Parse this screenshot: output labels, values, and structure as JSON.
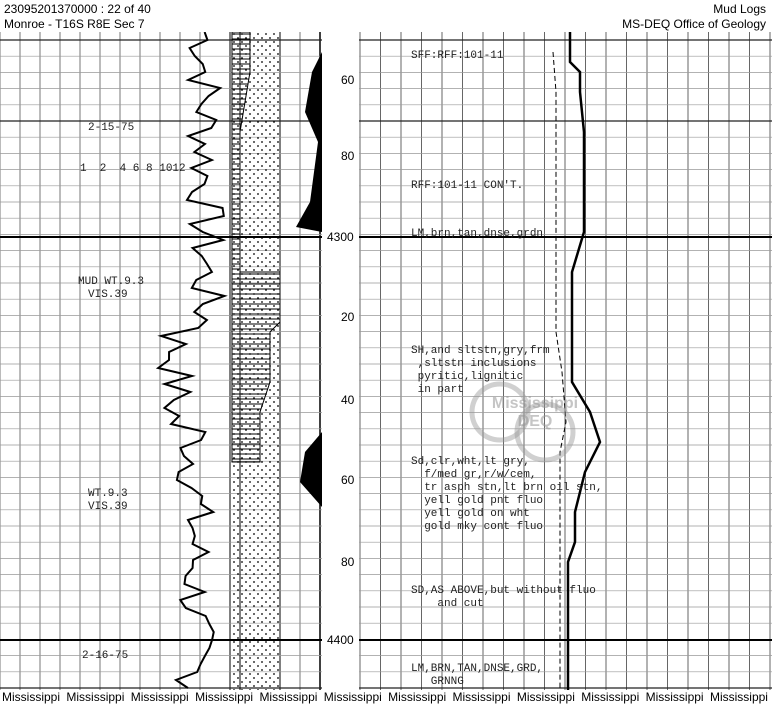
{
  "header": {
    "doc_id": "23095201370000 : 22 of 40",
    "location": "Monroe - T16S R8E Sec 7",
    "category": "Mud Logs",
    "agency": "MS-DEQ Office of Geology"
  },
  "left_notes": {
    "date1": "2-15-75",
    "scale": "1  2  4 6 8 1012",
    "mud1": "MUD WT.9.3",
    "vis1": "VIS.39",
    "mud2": "WT.9.3",
    "vis2": "VIS.39",
    "date2": "2-16-75"
  },
  "depths": [
    "60",
    "80",
    "4300",
    "20",
    "40",
    "60",
    "80",
    "4400"
  ],
  "descriptions": {
    "d1": "SFF:RFF:101-11",
    "d2": "RFF:101-11 CON'T.",
    "d3": "LM,brn,tan,dnse,grdn",
    "d4": "SH,and sltstn,gry,frm\n ,sltstn inclusions\n pyritic,lignitic\n in part",
    "d5": "Sd,clr,wht,lt gry,\n  f/med gr,r/w/cem,\n  tr asph stn,lt brn oil stn,\n  yell gold pnt fluo\n  yell gold on wht\n  gold mky cont fluo",
    "d6": "SD,AS ABOVE,but without fluo\n    and cut",
    "d7": "LM,BRN,TAN,DNSE,GRD,\n   GRNNG"
  },
  "watermark": {
    "line1": "Mississippi",
    "line2": "DEQ"
  },
  "footer": [
    "Mississippi",
    "Mississippi",
    "Mississippi",
    "Mississippi",
    "Mississippi",
    "Mississippi",
    "Mississippi",
    "Mississippi",
    "Mississippi",
    "Mississippi",
    "Mississippi",
    "Mississippi"
  ]
}
